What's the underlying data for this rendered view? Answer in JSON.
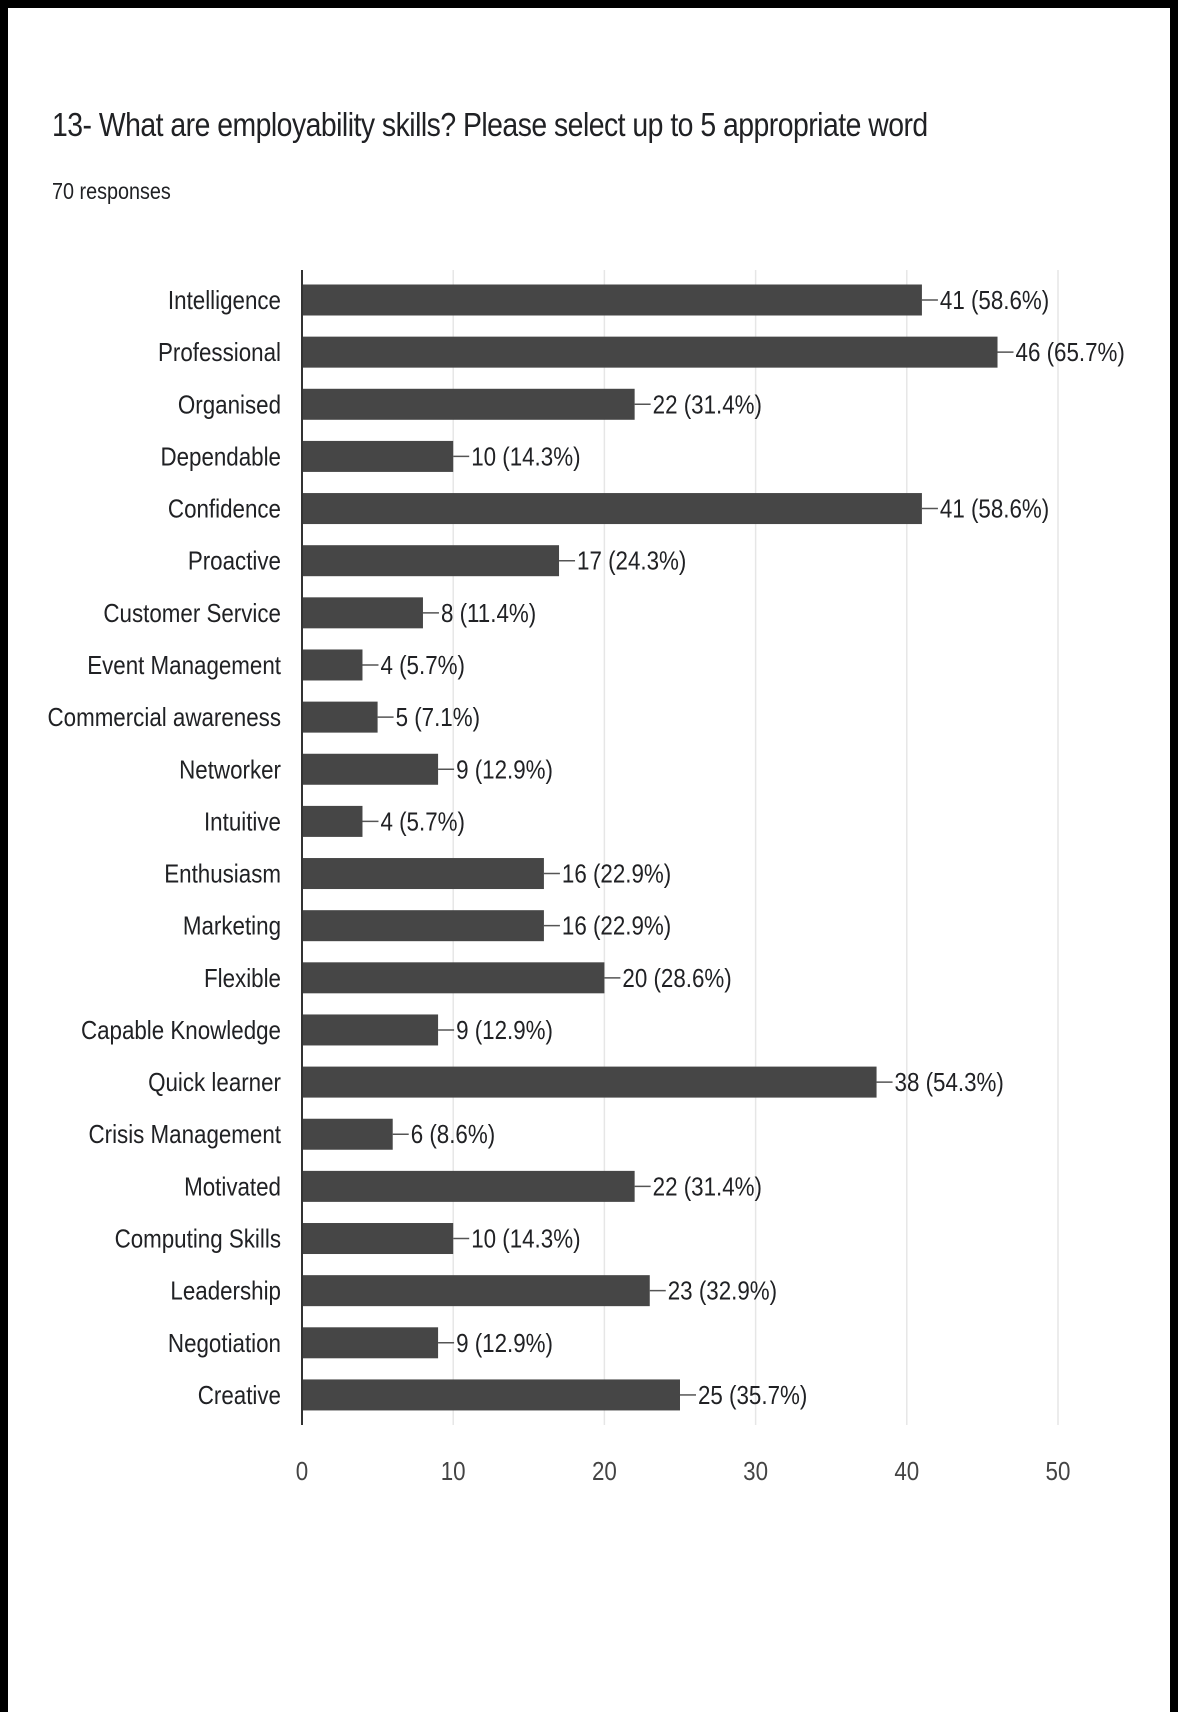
{
  "question": {
    "title": "13- What are employability skills? Please select up to 5 appropriate word",
    "responses": "70 responses"
  },
  "colors": {
    "bar": "#464646",
    "text": "#202124",
    "axis": "#333333",
    "grid": "#e6e6e6",
    "background": "#ffffff"
  },
  "chart_data": {
    "type": "bar",
    "orientation": "horizontal",
    "categories": [
      "Intelligence",
      "Professional",
      "Organised",
      "Dependable",
      "Confidence",
      "Proactive",
      "Customer Service",
      "Event Management",
      "Commercial awareness",
      "Networker",
      "Intuitive",
      "Enthusiasm",
      "Marketing",
      "Flexible",
      "Capable Knowledge",
      "Quick learner",
      "Crisis Management",
      "Motivated",
      "Computing Skills",
      "Leadership",
      "Negotiation",
      "Creative"
    ],
    "values": [
      41,
      46,
      22,
      10,
      41,
      17,
      8,
      4,
      5,
      9,
      4,
      16,
      16,
      20,
      9,
      38,
      6,
      22,
      10,
      23,
      9,
      25
    ],
    "data_labels": [
      "41 (58.6%)",
      "46 (65.7%)",
      "22 (31.4%)",
      "10 (14.3%)",
      "41 (58.6%)",
      "17 (24.3%)",
      "8 (11.4%)",
      "4 (5.7%)",
      "5 (7.1%)",
      "9 (12.9%)",
      "4 (5.7%)",
      "16 (22.9%)",
      "16 (22.9%)",
      "20 (28.6%)",
      "9 (12.9%)",
      "38 (54.3%)",
      "6 (8.6%)",
      "22 (31.4%)",
      "10 (14.3%)",
      "23 (32.9%)",
      "9 (12.9%)",
      "25 (35.7%)"
    ],
    "xlim": [
      0,
      50
    ],
    "xticks": [
      0,
      10,
      20,
      30,
      40,
      50
    ],
    "xtick_labels": [
      "0",
      "10",
      "20",
      "30",
      "40",
      "50"
    ],
    "grid": "vertical",
    "legend": "none"
  }
}
